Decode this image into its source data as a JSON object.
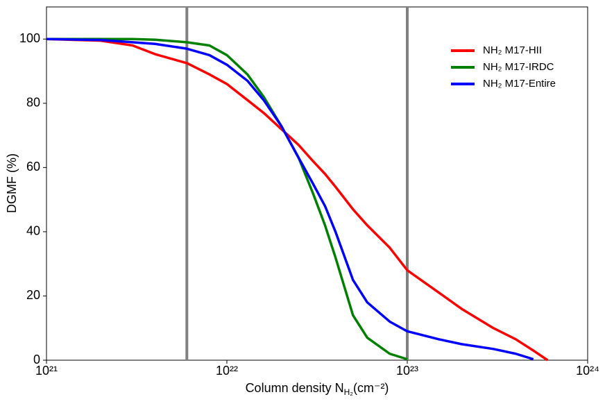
{
  "chart_data": {
    "type": "line",
    "ylabel": "DGMF (%)",
    "xlabel": [
      "Column density N",
      "H₂",
      "(cm⁻²)"
    ],
    "xscale": "log",
    "xlim": [
      1e+21,
      1e+24
    ],
    "xticks": [
      {
        "value": 1e+21,
        "label": "10²¹"
      },
      {
        "value": 1e+22,
        "label": "10²²"
      },
      {
        "value": 1e+23,
        "label": "10²³"
      },
      {
        "value": 1e+24,
        "label": "10²⁴"
      }
    ],
    "ylim": [
      0,
      110
    ],
    "yticks": [
      0,
      20,
      40,
      60,
      80,
      100
    ],
    "grid": false,
    "legend": "upper right",
    "vlines": {
      "color": "#808080",
      "values": [
        6e+21,
        1e+23
      ]
    },
    "x": [
      1e+21,
      2e+21,
      3e+21,
      4e+21,
      6e+21,
      8e+21,
      1e+22,
      1.3e+22,
      1.6e+22,
      2e+22,
      2.5e+22,
      3e+22,
      3.5e+22,
      4e+22,
      5e+22,
      6e+22,
      8e+22,
      1e+23,
      1.5e+23,
      2e+23,
      3e+23,
      4e+23,
      5e+23,
      6e+23
    ],
    "series": [
      {
        "name": "NH₂ M17-HII",
        "color": "#ff0000",
        "values": [
          100,
          99.5,
          98,
          95.3,
          92.5,
          89,
          86,
          81,
          77,
          72,
          67,
          62,
          58,
          54,
          47,
          42,
          35,
          28,
          21,
          16,
          10,
          6.5,
          3,
          0
        ]
      },
      {
        "name": "NH₂ M17-IRDC",
        "color": "#008000",
        "values": [
          100,
          100,
          100,
          99.8,
          99,
          98,
          95,
          89,
          82,
          73,
          63,
          52,
          42,
          32,
          14,
          7,
          2,
          0.3,
          null,
          null,
          null,
          null,
          null,
          null
        ]
      },
      {
        "name": "NH₂ M17-Entire",
        "color": "#0000ff",
        "values": [
          100,
          99.7,
          99,
          98.5,
          97,
          95,
          92,
          87,
          81,
          73,
          63,
          55,
          48,
          40,
          25,
          18,
          12,
          9,
          6.5,
          5,
          3.5,
          2,
          0.3,
          null
        ]
      }
    ]
  }
}
